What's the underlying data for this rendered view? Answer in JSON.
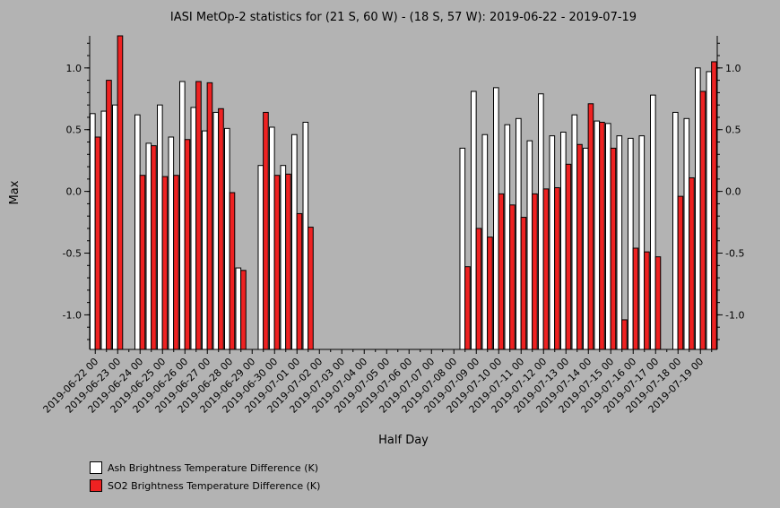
{
  "chart_data": {
    "type": "bar",
    "title": "IASI MetOp-2 statistics for (21 S, 60 W) - (18 S, 57 W): 2019-06-22 - 2019-07-19",
    "xlabel": "Half Day",
    "ylabel": "Max",
    "ylim": [
      -1.28,
      1.26
    ],
    "yticks": [
      -1.0,
      -0.5,
      0.0,
      0.5,
      1.0
    ],
    "ytick_labels": [
      "-1.0",
      "-0.5",
      "0.0",
      "0.5",
      "1.0"
    ],
    "xtick_labels": [
      "2019-06-22 00",
      "2019-06-23 00",
      "2019-06-24 00",
      "2019-06-25 00",
      "2019-06-26 00",
      "2019-06-27 00",
      "2019-06-28 00",
      "2019-06-29 00",
      "2019-06-30 00",
      "2019-07-01 00",
      "2019-07-02 00",
      "2019-07-03 00",
      "2019-07-04 00",
      "2019-07-05 00",
      "2019-07-06 00",
      "2019-07-07 00",
      "2019-07-08 00",
      "2019-07-09 00",
      "2019-07-10 00",
      "2019-07-11 00",
      "2019-07-12 00",
      "2019-07-13 00",
      "2019-07-14 00",
      "2019-07-15 00",
      "2019-07-16 00",
      "2019-07-17 00",
      "2019-07-18 00",
      "2019-07-19 00"
    ],
    "grid": false,
    "legend_position": "bottom-left",
    "series": [
      {
        "name": "Ash Brightness Temperature Difference (K)",
        "color": "#ffffff",
        "values": [
          0.63,
          0.65,
          0.7,
          null,
          0.62,
          0.39,
          0.7,
          0.44,
          0.89,
          0.68,
          0.49,
          0.64,
          0.51,
          -0.62,
          null,
          0.21,
          0.52,
          0.21,
          0.46,
          0.56,
          null,
          null,
          null,
          null,
          null,
          null,
          null,
          null,
          null,
          null,
          null,
          null,
          null,
          0.35,
          0.81,
          0.46,
          0.84,
          0.54,
          0.59,
          0.41,
          0.79,
          0.45,
          0.48,
          0.62,
          0.35,
          0.57,
          0.55,
          0.45,
          0.43,
          0.45,
          0.78,
          null,
          0.64,
          0.59,
          1.0,
          0.97
        ]
      },
      {
        "name": "SO2 Brightness Temperature Difference (K)",
        "color": "#ee2222",
        "values": [
          0.44,
          0.9,
          1.26,
          null,
          0.13,
          0.37,
          0.12,
          0.13,
          0.42,
          0.89,
          0.88,
          0.67,
          -0.01,
          -0.64,
          null,
          0.64,
          0.13,
          0.14,
          -0.18,
          -0.29,
          null,
          null,
          null,
          null,
          null,
          null,
          null,
          null,
          null,
          null,
          null,
          null,
          null,
          -0.61,
          -0.3,
          -0.37,
          -0.02,
          -0.11,
          -0.21,
          -0.02,
          0.02,
          0.03,
          0.22,
          0.38,
          0.71,
          0.56,
          0.35,
          -1.04,
          -0.46,
          -0.49,
          -0.53,
          null,
          -0.04,
          0.11,
          0.81,
          1.05
        ]
      }
    ]
  }
}
